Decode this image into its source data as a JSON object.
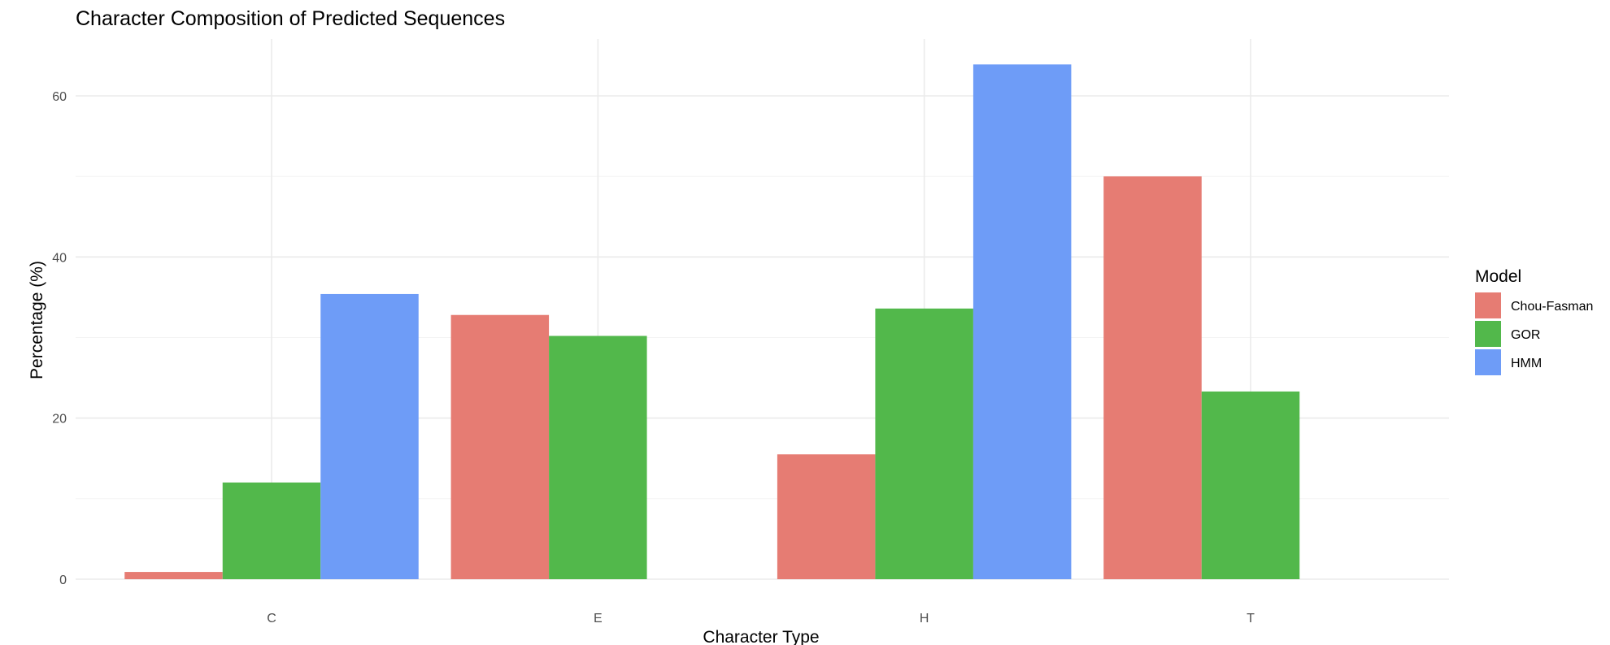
{
  "chart_data": {
    "type": "bar",
    "title": "Character Composition of Predicted Sequences",
    "xlabel": "Character Type",
    "ylabel": "Percentage (%)",
    "categories": [
      "C",
      "E",
      "H",
      "T"
    ],
    "series": [
      {
        "name": "Chou-Fasman",
        "color": "#e67c73",
        "values": [
          0.9,
          32.8,
          15.5,
          50.0
        ]
      },
      {
        "name": "GOR",
        "color": "#52b84b",
        "values": [
          12.0,
          30.2,
          33.6,
          23.3
        ]
      },
      {
        "name": "HMM",
        "color": "#6e9cf7",
        "values": [
          35.4,
          null,
          63.9,
          null
        ]
      }
    ],
    "ylim": [
      0,
      67
    ],
    "yticks": [
      0,
      20,
      40,
      60
    ],
    "grid": true,
    "legend": {
      "title": "Model",
      "position": "right"
    }
  }
}
